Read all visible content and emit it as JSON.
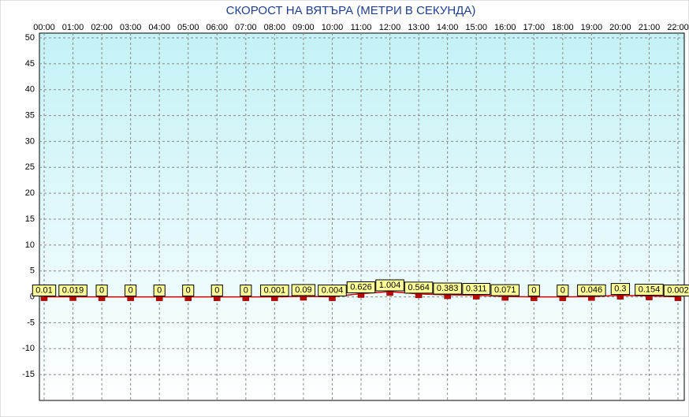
{
  "chart_data": {
    "type": "line",
    "title": "СКОРОСТ НА ВЯТЪРА (МЕТРИ В СЕКУНДА)",
    "categories": [
      "00:00",
      "01:00",
      "02:00",
      "03:00",
      "04:00",
      "05:00",
      "06:00",
      "07:00",
      "08:00",
      "09:00",
      "10:00",
      "11:00",
      "12:00",
      "13:00",
      "14:00",
      "15:00",
      "16:00",
      "17:00",
      "18:00",
      "19:00",
      "20:00",
      "21:00",
      "22:00"
    ],
    "values": [
      0.01,
      0.019,
      0,
      0,
      0,
      0,
      0,
      0,
      0.001,
      0.09,
      0.004,
      0.626,
      1.004,
      0.564,
      0.383,
      0.311,
      0.071,
      0,
      0,
      0.046,
      0.3,
      0.154,
      0.002
    ],
    "color": "#cc0000",
    "ylim": [
      -20,
      50
    ],
    "yticks": [
      -15,
      -10,
      -5,
      0,
      5,
      10,
      15,
      20,
      25,
      30,
      35,
      40,
      45,
      50
    ],
    "grid": true
  }
}
